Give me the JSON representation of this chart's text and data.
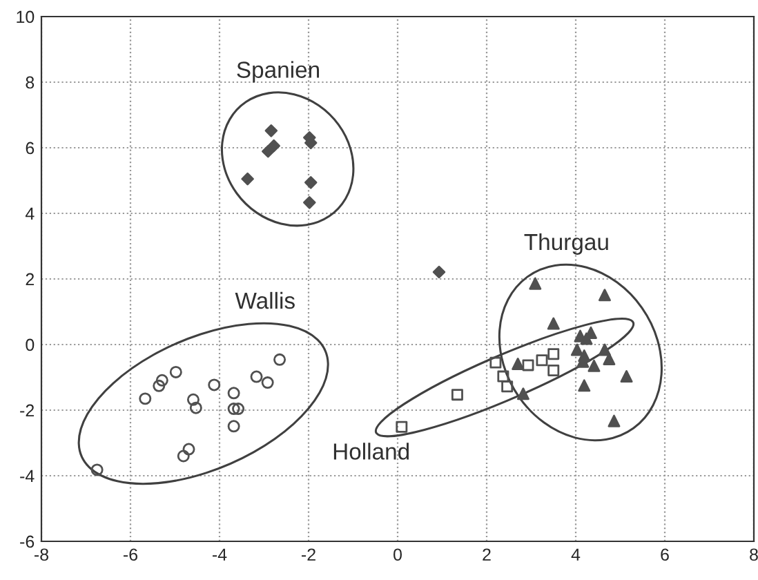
{
  "chart_data": {
    "type": "scatter",
    "xlim": [
      -8,
      8
    ],
    "ylim": [
      -6,
      10
    ],
    "xticks": [
      -8,
      -6,
      -4,
      -2,
      0,
      2,
      4,
      6,
      8
    ],
    "yticks": [
      -6,
      -4,
      -2,
      0,
      2,
      4,
      6,
      8,
      10
    ],
    "grid": true,
    "legend": false,
    "series": [
      {
        "name": "Spanien",
        "color": "#505050",
        "marker": "diamond",
        "x": [
          -2.84,
          -2.91,
          -2.78,
          -1.98,
          -1.95,
          -3.37,
          -1.95,
          -1.98
        ],
        "values": [
          6.52,
          5.89,
          6.06,
          6.31,
          6.15,
          5.05,
          4.94,
          4.33
        ]
      },
      {
        "color": "#505050",
        "marker": "diamond",
        "x": [
          0.93
        ],
        "values": [
          2.21
        ]
      },
      {
        "name": "Wallis",
        "color": "#505050",
        "marker": "circle",
        "x": [
          -6.75,
          -5.67,
          -5.36,
          -5.29,
          -4.98,
          -4.59,
          -4.53,
          -4.69,
          -4.81,
          -4.12,
          -3.68,
          -3.68,
          -3.58,
          -3.68,
          -3.17,
          -2.92,
          -2.65
        ],
        "values": [
          -3.82,
          -1.65,
          -1.26,
          -1.09,
          -0.84,
          -1.68,
          -1.93,
          -3.19,
          -3.4,
          -1.23,
          -1.48,
          -1.96,
          -1.96,
          -2.49,
          -0.98,
          -1.16,
          -0.46
        ]
      },
      {
        "name": "Thurgau",
        "color": "#505050",
        "marker": "triangle",
        "x": [
          3.09,
          4.65,
          3.5,
          4.1,
          4.24,
          4.34,
          4.03,
          4.16,
          4.19,
          4.41,
          4.65,
          4.75,
          5.14,
          4.19,
          4.86,
          2.7,
          2.82
        ],
        "values": [
          1.86,
          1.51,
          0.64,
          0.26,
          0.18,
          0.36,
          -0.16,
          -0.52,
          -0.34,
          -0.65,
          -0.16,
          -0.44,
          -0.97,
          -1.25,
          -2.33,
          -0.59,
          -1.5
        ]
      },
      {
        "name": "Holland",
        "color": "#505050",
        "marker": "square",
        "x": [
          0.09,
          1.34,
          2.2,
          2.37,
          2.46,
          2.93,
          3.24,
          3.5,
          3.5
        ],
        "values": [
          -2.51,
          -1.53,
          -0.55,
          -0.97,
          -1.28,
          -0.63,
          -0.48,
          -0.29,
          -0.79
        ]
      }
    ]
  }
}
